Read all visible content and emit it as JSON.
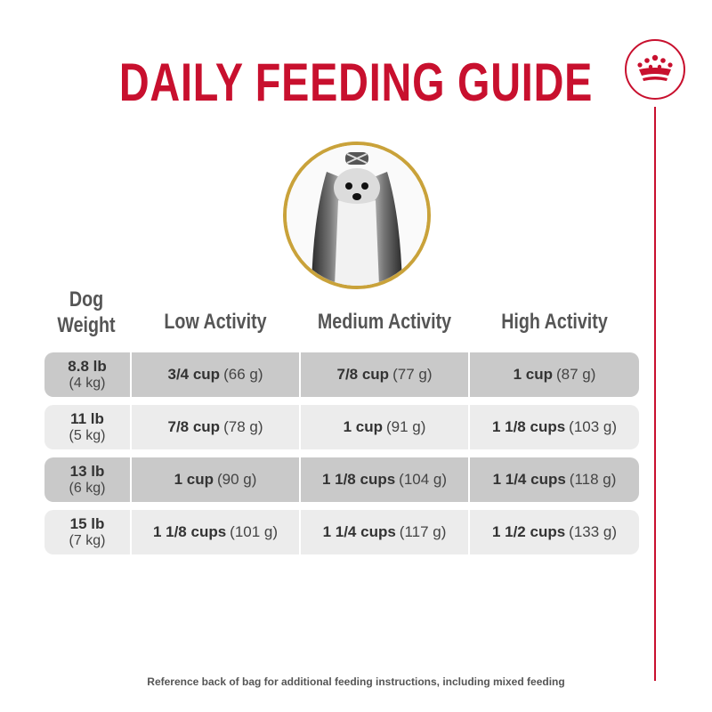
{
  "title": "DAILY FEEDING GUIDE",
  "brand": {
    "logo_icon": "crown-logo-icon",
    "accent_color": "#c8102e"
  },
  "photo": {
    "subject_icon": "shih-tzu-dog-photo",
    "ring_color": "#c9a23a"
  },
  "table": {
    "weight_header_line1": "Dog",
    "weight_header_line2": "Weight",
    "columns": [
      "Low Activity",
      "Medium Activity",
      "High Activity"
    ],
    "rows": [
      {
        "weight": "8.8 lb",
        "weight_metric": "(4 kg)",
        "cells": [
          {
            "amount": "3/4 cup",
            "grams": "(66 g)"
          },
          {
            "amount": "7/8 cup",
            "grams": "(77 g)"
          },
          {
            "amount": "1 cup",
            "grams": "(87 g)"
          }
        ]
      },
      {
        "weight": "11 lb",
        "weight_metric": "(5 kg)",
        "cells": [
          {
            "amount": "7/8 cup",
            "grams": "(78 g)"
          },
          {
            "amount": "1 cup",
            "grams": "(91 g)"
          },
          {
            "amount": "1 1/8 cups",
            "grams": "(103 g)"
          }
        ]
      },
      {
        "weight": "13 lb",
        "weight_metric": "(6 kg)",
        "cells": [
          {
            "amount": "1 cup",
            "grams": "(90 g)"
          },
          {
            "amount": "1 1/8 cups",
            "grams": "(104 g)"
          },
          {
            "amount": "1 1/4 cups",
            "grams": "(118 g)"
          }
        ]
      },
      {
        "weight": "15 lb",
        "weight_metric": "(7 kg)",
        "cells": [
          {
            "amount": "1 1/8 cups",
            "grams": "(101 g)"
          },
          {
            "amount": "1 1/4 cups",
            "grams": "(117 g)"
          },
          {
            "amount": "1 1/2 cups",
            "grams": "(133 g)"
          }
        ]
      }
    ]
  },
  "footer": "Reference back of bag for additional feeding instructions, including mixed feeding"
}
